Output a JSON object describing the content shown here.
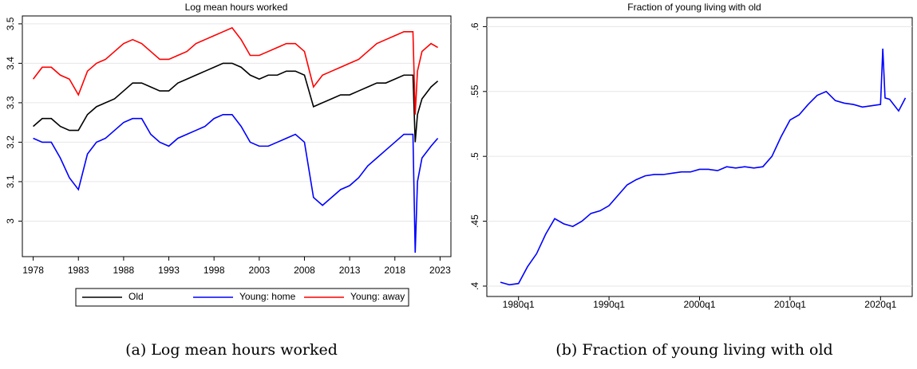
{
  "chart_data": [
    {
      "type": "line",
      "title": "Log mean hours worked",
      "caption": "(a) Log mean hours worked",
      "x": [
        1978,
        1979,
        1980,
        1981,
        1982,
        1983,
        1984,
        1985,
        1986,
        1987,
        1988,
        1989,
        1990,
        1991,
        1992,
        1993,
        1994,
        1995,
        1996,
        1997,
        1998,
        1999,
        2000,
        2001,
        2002,
        2003,
        2004,
        2005,
        2006,
        2007,
        2008,
        2009,
        2010,
        2011,
        2012,
        2013,
        2014,
        2015,
        2016,
        2017,
        2018,
        2019,
        2020,
        2020.25,
        2020.5,
        2021,
        2022,
        2022.75
      ],
      "series": [
        {
          "name": "Old",
          "color": "#000000",
          "values": [
            3.24,
            3.26,
            3.26,
            3.24,
            3.23,
            3.23,
            3.27,
            3.29,
            3.3,
            3.31,
            3.33,
            3.35,
            3.35,
            3.34,
            3.33,
            3.33,
            3.35,
            3.36,
            3.37,
            3.38,
            3.39,
            3.4,
            3.4,
            3.39,
            3.37,
            3.36,
            3.37,
            3.37,
            3.38,
            3.38,
            3.37,
            3.29,
            3.3,
            3.31,
            3.32,
            3.32,
            3.33,
            3.34,
            3.35,
            3.35,
            3.36,
            3.37,
            3.37,
            3.2,
            3.27,
            3.31,
            3.34,
            3.355
          ]
        },
        {
          "name": "Young: home",
          "color": "#0000ff",
          "values": [
            3.21,
            3.2,
            3.2,
            3.16,
            3.11,
            3.08,
            3.17,
            3.2,
            3.21,
            3.23,
            3.25,
            3.26,
            3.26,
            3.22,
            3.2,
            3.19,
            3.21,
            3.22,
            3.23,
            3.24,
            3.26,
            3.27,
            3.27,
            3.24,
            3.2,
            3.19,
            3.19,
            3.2,
            3.21,
            3.22,
            3.2,
            3.06,
            3.04,
            3.06,
            3.08,
            3.09,
            3.11,
            3.14,
            3.16,
            3.18,
            3.2,
            3.22,
            3.22,
            2.92,
            3.1,
            3.16,
            3.19,
            3.21
          ]
        },
        {
          "name": "Young: away",
          "color": "#ff0000",
          "values": [
            3.36,
            3.39,
            3.39,
            3.37,
            3.36,
            3.32,
            3.38,
            3.4,
            3.41,
            3.43,
            3.45,
            3.46,
            3.45,
            3.43,
            3.41,
            3.41,
            3.42,
            3.43,
            3.45,
            3.46,
            3.47,
            3.48,
            3.49,
            3.46,
            3.42,
            3.42,
            3.43,
            3.44,
            3.45,
            3.45,
            3.43,
            3.34,
            3.37,
            3.38,
            3.39,
            3.4,
            3.41,
            3.43,
            3.45,
            3.46,
            3.47,
            3.48,
            3.48,
            3.27,
            3.38,
            3.43,
            3.45,
            3.44
          ]
        }
      ],
      "xlim": [
        1976.8,
        2024.2
      ],
      "xticks": [
        1978,
        1983,
        1988,
        1993,
        1998,
        2003,
        2008,
        2013,
        2018,
        2023
      ],
      "ylim": [
        2.91,
        3.52
      ],
      "yticks": [
        3,
        3.1,
        3.2,
        3.3,
        3.4,
        3.5
      ],
      "grid": true,
      "legend": "bottom"
    },
    {
      "type": "line",
      "title": "Fraction of young living with old",
      "caption": "(b) Fraction of young living with old",
      "x": [
        1978,
        1979,
        1980,
        1981,
        1982,
        1983,
        1984,
        1985,
        1986,
        1987,
        1988,
        1989,
        1990,
        1991,
        1992,
        1993,
        1994,
        1995,
        1996,
        1997,
        1998,
        1999,
        2000,
        2001,
        2002,
        2003,
        2004,
        2005,
        2006,
        2007,
        2008,
        2009,
        2010,
        2011,
        2012,
        2013,
        2014,
        2015,
        2016,
        2017,
        2018,
        2019,
        2020,
        2020.25,
        2020.5,
        2021,
        2022,
        2022.75
      ],
      "series": [
        {
          "color": "#0000ff",
          "values": [
            0.403,
            0.401,
            0.402,
            0.415,
            0.425,
            0.44,
            0.452,
            0.448,
            0.446,
            0.45,
            0.456,
            0.458,
            0.462,
            0.47,
            0.478,
            0.482,
            0.485,
            0.486,
            0.486,
            0.487,
            0.488,
            0.488,
            0.49,
            0.49,
            0.489,
            0.492,
            0.491,
            0.492,
            0.491,
            0.492,
            0.5,
            0.515,
            0.528,
            0.532,
            0.54,
            0.547,
            0.55,
            0.543,
            0.541,
            0.54,
            0.538,
            0.539,
            0.54,
            0.583,
            0.545,
            0.544,
            0.535,
            0.545
          ]
        }
      ],
      "xlim": [
        1976.5,
        2023.5
      ],
      "xticks": [
        {
          "value": 1980,
          "label": "1980q1"
        },
        {
          "value": 1990,
          "label": "1990q1"
        },
        {
          "value": 2000,
          "label": "2000q1"
        },
        {
          "value": 2010,
          "label": "2010q1"
        },
        {
          "value": 2020,
          "label": "2020q1"
        }
      ],
      "ylim": [
        0.392,
        0.607
      ],
      "yticks": [
        {
          "value": 0.4,
          "label": ".4"
        },
        {
          "value": 0.45,
          "label": ".45"
        },
        {
          "value": 0.5,
          "label": ".5"
        },
        {
          "value": 0.55,
          "label": ".55"
        },
        {
          "value": 0.6,
          "label": ".6"
        }
      ],
      "grid": true
    }
  ]
}
